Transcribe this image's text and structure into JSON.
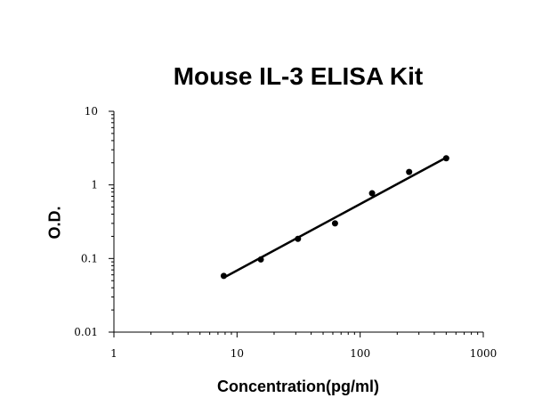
{
  "chart_data": {
    "type": "scatter",
    "title": "Mouse IL-3 ELISA Kit",
    "xlabel": "Concentration(pg/ml)",
    "ylabel": "O.D.",
    "x_scale": "log",
    "y_scale": "log",
    "xlim": [
      1,
      1000
    ],
    "ylim": [
      0.01,
      10
    ],
    "x_ticks": [
      "1",
      "10",
      "100",
      "1000"
    ],
    "y_ticks": [
      "0.01",
      "0.1",
      "1",
      "10"
    ],
    "grid": false,
    "legend": "none",
    "series": [
      {
        "x": [
          7.8,
          15.6,
          31.25,
          62.5,
          125,
          250,
          500
        ],
        "y": [
          0.058,
          0.097,
          0.185,
          0.3,
          0.77,
          1.5,
          2.3
        ]
      }
    ],
    "trendline": {
      "x": [
        7.8,
        500
      ],
      "y": [
        0.055,
        2.35
      ]
    },
    "marker_color": "#000000",
    "line_color": "#000000"
  }
}
